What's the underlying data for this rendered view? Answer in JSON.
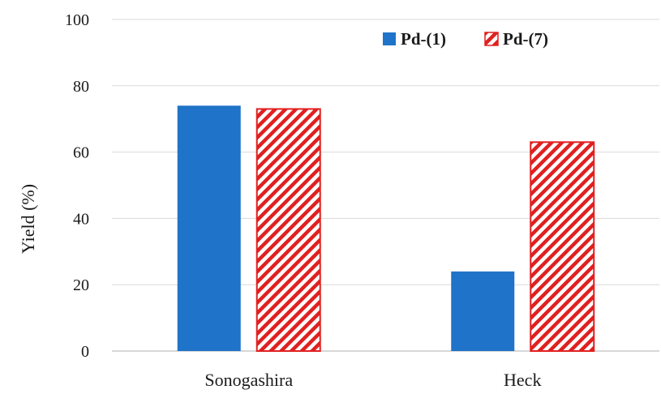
{
  "chart_data": {
    "type": "bar",
    "categories": [
      "Sonogashira",
      "Heck"
    ],
    "series": [
      {
        "name": "Pd-(1)",
        "values": [
          74,
          24
        ],
        "color": "#1f73c8",
        "pattern": "solid"
      },
      {
        "name": "Pd-(7)",
        "values": [
          73,
          63
        ],
        "color": "#e02020",
        "pattern": "diagonal-hatch"
      }
    ],
    "ylabel": "Yield (%)",
    "xlabel": "",
    "ylim": [
      0,
      100
    ],
    "yticks": [
      "0",
      "20",
      "40",
      "60",
      "80",
      "100"
    ],
    "grid": true,
    "legend_position": "top-right"
  }
}
